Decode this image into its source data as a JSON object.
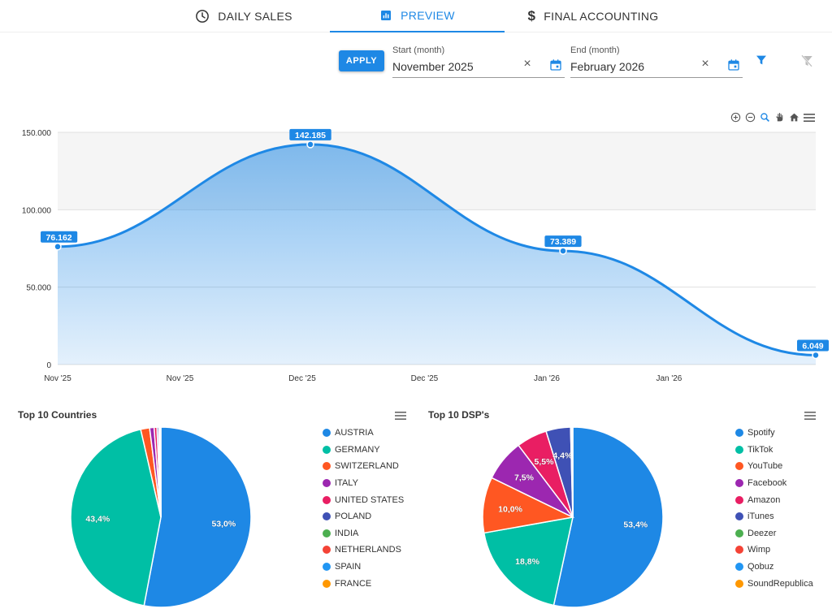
{
  "tabs": [
    {
      "label": "DAILY SALES",
      "icon": "clock-icon",
      "active": false
    },
    {
      "label": "PREVIEW",
      "icon": "bar-chart-icon",
      "active": true
    },
    {
      "label": "FINAL ACCOUNTING",
      "icon": "dollar-icon",
      "active": false
    }
  ],
  "filters": {
    "apply_label": "APPLY",
    "start_label": "Start (month)",
    "start_value": "November 2025",
    "end_label": "End (month)",
    "end_value": "February 2026",
    "accent": "#1e88e5"
  },
  "chart_data": [
    {
      "type": "area",
      "x_tick_labels": [
        "Nov '25",
        "Nov '25",
        "Dec '25",
        "Dec '25",
        "Jan '26",
        "Jan '26"
      ],
      "y_tick_labels": [
        "0",
        "50.000",
        "100.000",
        "150.000"
      ],
      "ylim": [
        0,
        150000
      ],
      "points": [
        {
          "x": "Nov '25",
          "value": 76162,
          "label": "76.162"
        },
        {
          "x": "Dec '25",
          "value": 142185,
          "label": "142.185"
        },
        {
          "x": "Jan '26",
          "value": 73389,
          "label": "73.389"
        },
        {
          "x": "Feb '26",
          "value": 6049,
          "label": "6.049"
        }
      ],
      "color": "#1e88e5",
      "grid": true
    },
    {
      "type": "pie",
      "title": "Top 10 Countries",
      "slices": [
        {
          "name": "AUSTRIA",
          "value": 53.0,
          "label": "53,0%",
          "color": "#1e88e5"
        },
        {
          "name": "GERMANY",
          "value": 43.4,
          "label": "43,4%",
          "color": "#00bfa5"
        },
        {
          "name": "SWITZERLAND",
          "value": 1.6,
          "label": "",
          "color": "#ff5722"
        },
        {
          "name": "ITALY",
          "value": 0.8,
          "label": "",
          "color": "#9c27b0"
        },
        {
          "name": "UNITED STATES",
          "value": 0.5,
          "label": "",
          "color": "#e91e63"
        },
        {
          "name": "POLAND",
          "value": 0.3,
          "label": "",
          "color": "#3f51b5"
        },
        {
          "name": "INDIA",
          "value": 0.15,
          "label": "",
          "color": "#4caf50"
        },
        {
          "name": "NETHERLANDS",
          "value": 0.1,
          "label": "",
          "color": "#f44336"
        },
        {
          "name": "SPAIN",
          "value": 0.1,
          "label": "",
          "color": "#2196f3"
        },
        {
          "name": "FRANCE",
          "value": 0.05,
          "label": "",
          "color": "#ff9800"
        }
      ]
    },
    {
      "type": "pie",
      "title": "Top 10 DSP's",
      "slices": [
        {
          "name": "Spotify",
          "value": 53.4,
          "label": "53,4%",
          "color": "#1e88e5"
        },
        {
          "name": "TikTok",
          "value": 18.8,
          "label": "18,8%",
          "color": "#00bfa5"
        },
        {
          "name": "YouTube",
          "value": 10.0,
          "label": "10,0%",
          "color": "#ff5722"
        },
        {
          "name": "Facebook",
          "value": 7.5,
          "label": "7,5%",
          "color": "#9c27b0"
        },
        {
          "name": "Amazon",
          "value": 5.5,
          "label": "5,5%",
          "color": "#e91e63"
        },
        {
          "name": "iTunes",
          "value": 4.4,
          "label": "4,4%",
          "color": "#3f51b5"
        },
        {
          "name": "Deezer",
          "value": 0.2,
          "label": "",
          "color": "#4caf50"
        },
        {
          "name": "Wimp",
          "value": 0.1,
          "label": "",
          "color": "#f44336"
        },
        {
          "name": "Qobuz",
          "value": 0.05,
          "label": "",
          "color": "#2196f3"
        },
        {
          "name": "SoundRepublica",
          "value": 0.05,
          "label": "",
          "color": "#ff9800"
        }
      ]
    }
  ]
}
